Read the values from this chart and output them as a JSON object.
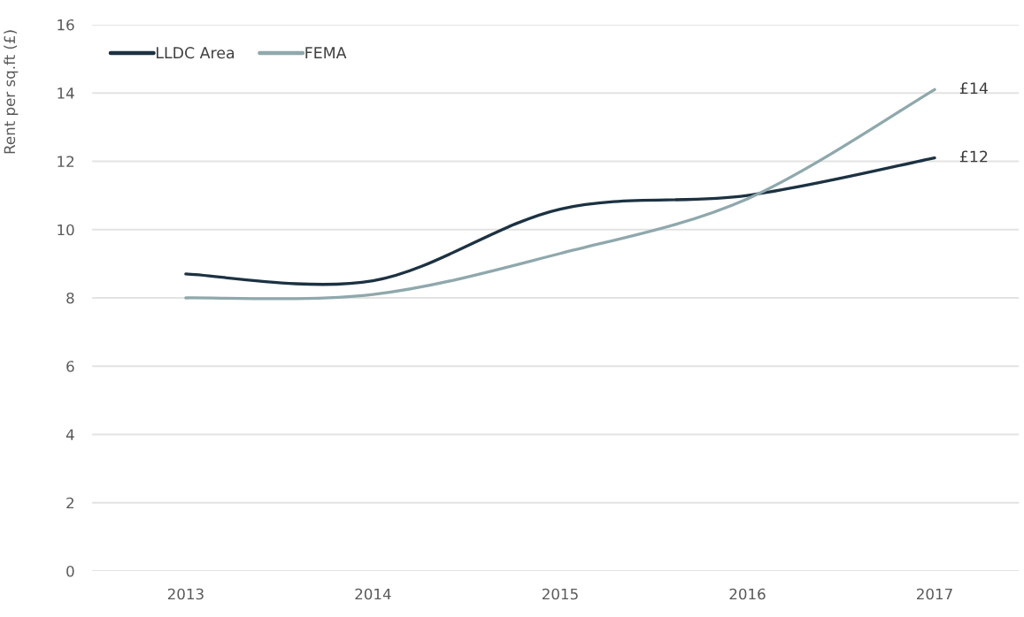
{
  "chart_data": {
    "type": "line",
    "ylabel": "Rent per sq.ft (£)",
    "categories": [
      "2013",
      "2014",
      "2015",
      "2016",
      "2017"
    ],
    "series": [
      {
        "name": "LLDC Area",
        "color": "#1c3242",
        "values": [
          8.7,
          8.5,
          10.6,
          11.0,
          12.1
        ],
        "value_labels": [
          null,
          null,
          null,
          null,
          "£12"
        ]
      },
      {
        "name": "FEMA",
        "color": "#8fa8ac",
        "values": [
          8.0,
          8.1,
          9.3,
          10.9,
          14.1
        ],
        "value_labels": [
          null,
          null,
          null,
          null,
          "£14"
        ]
      }
    ],
    "ylim": [
      0,
      16
    ],
    "yticks": [
      0,
      2,
      4,
      6,
      8,
      10,
      12,
      14,
      16
    ],
    "grid": "y",
    "legend": "top left",
    "marker": "none",
    "line_style": "solid"
  }
}
